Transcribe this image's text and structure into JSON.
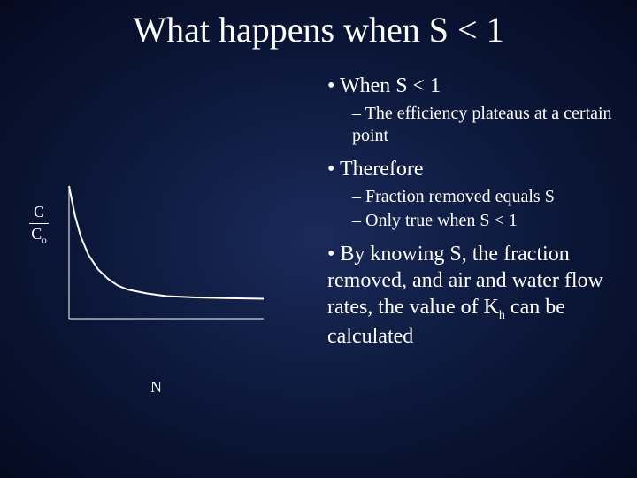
{
  "title": "What happens when S < 1",
  "bullets": {
    "b1": "When S < 1",
    "b1s1": "The efficiency plateaus at a certain point",
    "b2": "Therefore",
    "b2s1": "Fraction removed equals S",
    "b2s2": "Only true when S < 1",
    "b3_prefix": "By knowing S, the fraction removed, and air and water flow rates, the value of K",
    "b3_sub": "h",
    "b3_suffix": " can be calculated"
  },
  "chart": {
    "type": "line",
    "y_label_num": "C",
    "y_label_den": "C",
    "y_label_den_sub": "o",
    "x_label": "N",
    "axis_color": "#ffffff",
    "curve_color": "#ffffff",
    "background": "transparent",
    "stroke_width": 2,
    "xlim": [
      0,
      10
    ],
    "ylim": [
      0,
      1
    ],
    "curve_points": [
      [
        0.0,
        1.0
      ],
      [
        0.3,
        0.78
      ],
      [
        0.6,
        0.62
      ],
      [
        1.0,
        0.48
      ],
      [
        1.5,
        0.37
      ],
      [
        2.0,
        0.3
      ],
      [
        2.5,
        0.25
      ],
      [
        3.0,
        0.22
      ],
      [
        4.0,
        0.19
      ],
      [
        5.0,
        0.17
      ],
      [
        6.5,
        0.16
      ],
      [
        8.0,
        0.155
      ],
      [
        10.0,
        0.15
      ]
    ]
  },
  "colors": {
    "text": "#ffffff",
    "bg_inner": "#1a2a5a",
    "bg_outer": "#050a20"
  },
  "typography": {
    "title_fontsize_pt": 30,
    "body_fontsize_pt": 18,
    "sub_fontsize_pt": 15,
    "font_family": "Times New Roman"
  }
}
